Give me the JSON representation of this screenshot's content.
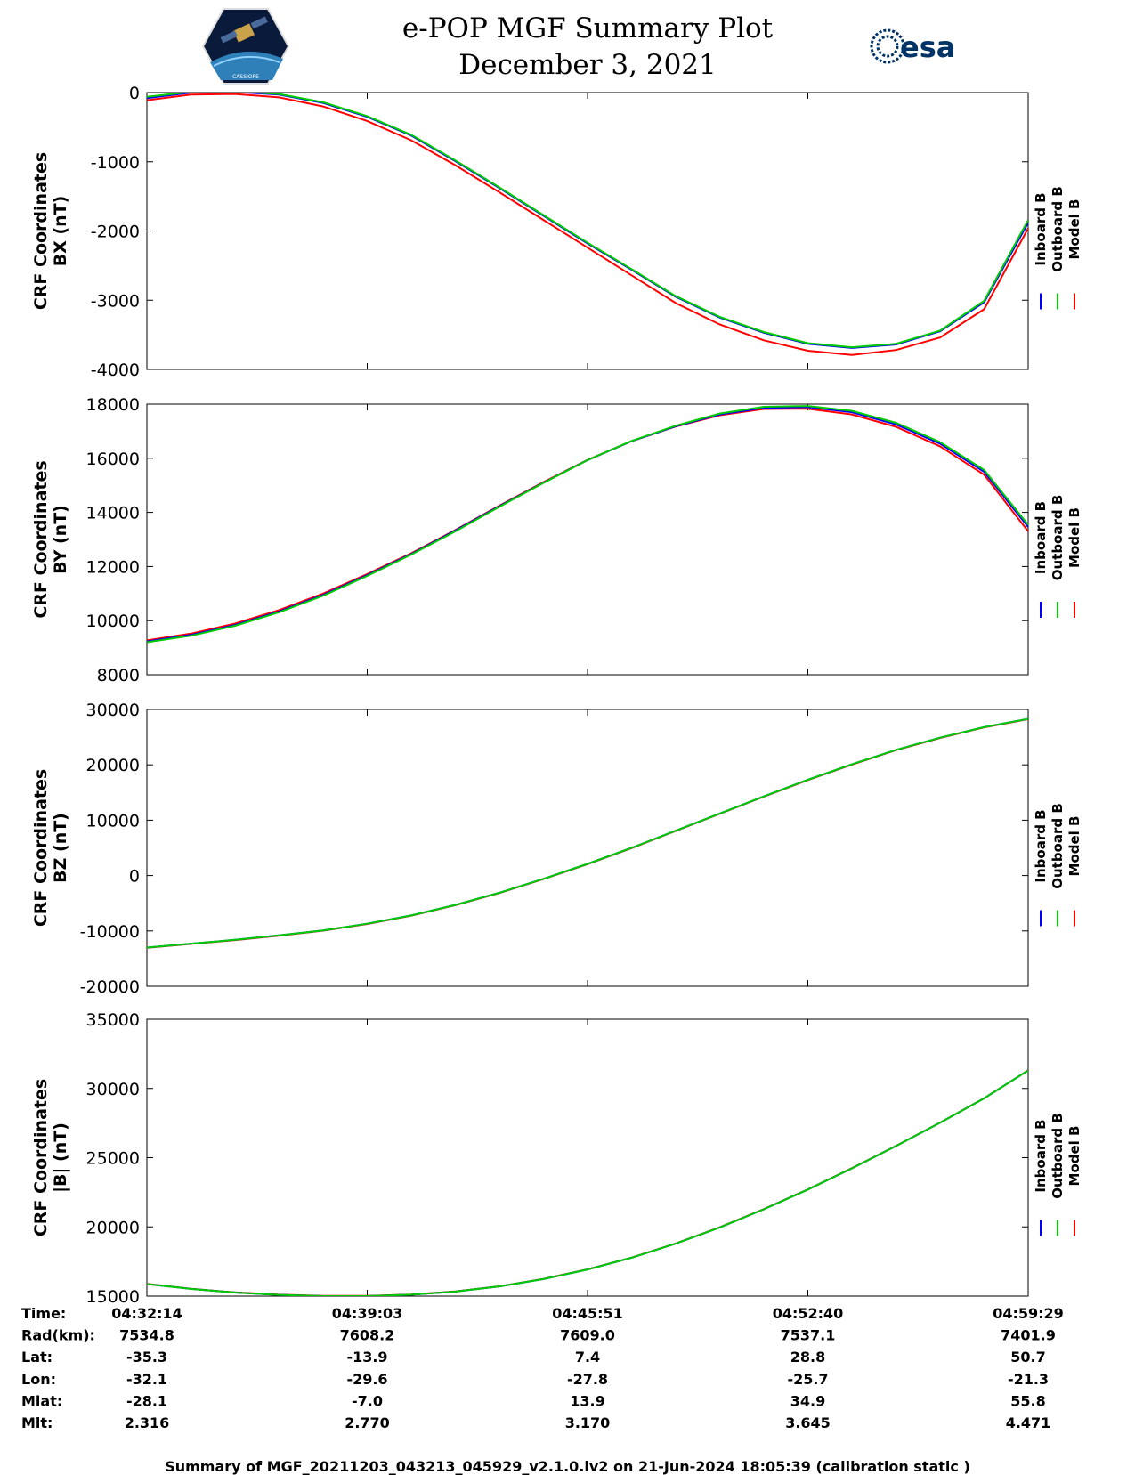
{
  "header": {
    "title": "e-POP MGF Summary Plot",
    "date": "December 3, 2021",
    "esa_logo_text": "esa",
    "epop_logo_text": "CASSIOPE"
  },
  "chart_data": [
    {
      "type": "line",
      "ylabel": [
        "CRF Coordinates",
        "BX (nT)"
      ],
      "ylim": [
        -4000,
        0
      ],
      "yticks": [
        0,
        -1000,
        -2000,
        -3000,
        -4000
      ],
      "tick_labels": [
        "0",
        "-1000",
        "-2000",
        "-3000",
        "-4000"
      ],
      "x": [
        0,
        0.05,
        0.1,
        0.15,
        0.2,
        0.25,
        0.3,
        0.35,
        0.4,
        0.45,
        0.5,
        0.55,
        0.6,
        0.65,
        0.7,
        0.75,
        0.8,
        0.85,
        0.9,
        0.95,
        1.0
      ],
      "series": [
        {
          "name": "Inboard B",
          "color": "#0000ff",
          "values": [
            -80,
            0,
            10,
            -30,
            -150,
            -350,
            -620,
            -990,
            -1380,
            -1780,
            -2180,
            -2560,
            -2950,
            -3250,
            -3470,
            -3630,
            -3690,
            -3640,
            -3450,
            -3030,
            -1880
          ]
        },
        {
          "name": "Outboard B",
          "color": "#00cc00",
          "values": [
            -60,
            10,
            20,
            -20,
            -140,
            -340,
            -610,
            -980,
            -1370,
            -1770,
            -2170,
            -2550,
            -2940,
            -3240,
            -3460,
            -3620,
            -3680,
            -3630,
            -3440,
            -3010,
            -1840
          ]
        },
        {
          "name": "Model B",
          "color": "#ff0000",
          "values": [
            -110,
            -30,
            -20,
            -70,
            -200,
            -410,
            -690,
            -1050,
            -1440,
            -1840,
            -2240,
            -2640,
            -3040,
            -3350,
            -3580,
            -3730,
            -3790,
            -3720,
            -3540,
            -3130,
            -1960
          ]
        }
      ]
    },
    {
      "type": "line",
      "ylabel": [
        "CRF Coordinates",
        "BY (nT)"
      ],
      "ylim": [
        8000,
        18000
      ],
      "yticks": [
        18000,
        16000,
        14000,
        12000,
        10000,
        8000
      ],
      "tick_labels": [
        "18000",
        "16000",
        "14000",
        "12000",
        "10000",
        "8000"
      ],
      "x": [
        0,
        0.05,
        0.1,
        0.15,
        0.2,
        0.25,
        0.3,
        0.35,
        0.4,
        0.45,
        0.5,
        0.55,
        0.6,
        0.65,
        0.7,
        0.75,
        0.8,
        0.85,
        0.9,
        0.95,
        1.0
      ],
      "series": [
        {
          "name": "Inboard B",
          "color": "#0000ff",
          "values": [
            9230,
            9470,
            9840,
            10340,
            10950,
            11680,
            12460,
            13330,
            14230,
            15100,
            15930,
            16630,
            17180,
            17620,
            17860,
            17890,
            17700,
            17250,
            16540,
            15500,
            13460
          ]
        },
        {
          "name": "Outboard B",
          "color": "#00cc00",
          "values": [
            9200,
            9440,
            9810,
            10310,
            10920,
            11650,
            12440,
            13300,
            14210,
            15090,
            15930,
            16640,
            17200,
            17650,
            17900,
            17930,
            17750,
            17310,
            16600,
            15570,
            13540
          ]
        },
        {
          "name": "Model B",
          "color": "#ff0000",
          "values": [
            9270,
            9520,
            9890,
            10390,
            11000,
            11720,
            12490,
            13350,
            14250,
            15120,
            15940,
            16630,
            17170,
            17590,
            17820,
            17830,
            17620,
            17160,
            16440,
            15390,
            13300
          ]
        }
      ]
    },
    {
      "type": "line",
      "ylabel": [
        "CRF Coordinates",
        "BZ (nT)"
      ],
      "ylim": [
        -20000,
        30000
      ],
      "yticks": [
        30000,
        20000,
        10000,
        0,
        -10000,
        -20000
      ],
      "tick_labels": [
        "30000",
        "20000",
        "10000",
        "0",
        "-10000",
        "-20000"
      ],
      "x": [
        0,
        0.05,
        0.1,
        0.15,
        0.2,
        0.25,
        0.3,
        0.35,
        0.4,
        0.45,
        0.5,
        0.55,
        0.6,
        0.65,
        0.7,
        0.75,
        0.8,
        0.85,
        0.9,
        0.95,
        1.0
      ],
      "series": [
        {
          "name": "Inboard B",
          "color": "#0000ff",
          "values": [
            -13000,
            -12300,
            -11600,
            -10800,
            -9900,
            -8700,
            -7200,
            -5300,
            -3100,
            -600,
            2100,
            5000,
            8100,
            11200,
            14300,
            17300,
            20100,
            22700,
            24900,
            26800,
            28300
          ]
        },
        {
          "name": "Outboard B",
          "color": "#00cc00",
          "values": [
            -13000,
            -12300,
            -11600,
            -10800,
            -9900,
            -8700,
            -7200,
            -5300,
            -3100,
            -600,
            2100,
            5000,
            8100,
            11200,
            14300,
            17300,
            20100,
            22700,
            24900,
            26800,
            28300
          ]
        },
        {
          "name": "Model B",
          "color": "#ff0000",
          "values": [
            -13050,
            -12350,
            -11650,
            -10850,
            -9950,
            -8750,
            -7250,
            -5350,
            -3150,
            -650,
            2050,
            4950,
            8050,
            11150,
            14250,
            17250,
            20050,
            22650,
            24850,
            26750,
            28250
          ]
        }
      ]
    },
    {
      "type": "line",
      "ylabel": [
        "CRF Coordinates",
        "|B| (nT)"
      ],
      "ylim": [
        15000,
        35000
      ],
      "yticks": [
        35000,
        30000,
        25000,
        20000,
        15000
      ],
      "tick_labels": [
        "35000",
        "30000",
        "25000",
        "20000",
        "15000"
      ],
      "x": [
        0,
        0.05,
        0.1,
        0.15,
        0.2,
        0.25,
        0.3,
        0.35,
        0.4,
        0.45,
        0.5,
        0.55,
        0.6,
        0.65,
        0.7,
        0.75,
        0.8,
        0.85,
        0.9,
        0.95,
        1.0
      ],
      "series": [
        {
          "name": "Inboard B",
          "color": "#0000ff",
          "values": [
            15870,
            15520,
            15260,
            15090,
            15000,
            15000,
            15100,
            15330,
            15700,
            16230,
            16920,
            17770,
            18790,
            19960,
            21270,
            22700,
            24230,
            25840,
            27520,
            29280,
            31300
          ]
        },
        {
          "name": "Outboard B",
          "color": "#00cc00",
          "values": [
            15870,
            15520,
            15260,
            15090,
            15000,
            15000,
            15100,
            15330,
            15700,
            16230,
            16920,
            17770,
            18790,
            19960,
            21270,
            22700,
            24230,
            25840,
            27520,
            29280,
            31300
          ]
        },
        {
          "name": "Model B",
          "color": "#ff0000",
          "values": [
            15880,
            15530,
            15270,
            15100,
            15010,
            15010,
            15110,
            15340,
            15710,
            16240,
            16930,
            17780,
            18800,
            19970,
            21280,
            22710,
            24240,
            25850,
            27530,
            29290,
            31310
          ]
        }
      ]
    }
  ],
  "legend": [
    "Inboard B",
    "Outboard B",
    "Model B"
  ],
  "legend_colors": [
    "#0000ff",
    "#00cc00",
    "#ff0000"
  ],
  "table": {
    "rows": [
      {
        "label": "Time:",
        "values": [
          "04:32:14",
          "04:39:03",
          "04:45:51",
          "04:52:40",
          "04:59:29"
        ]
      },
      {
        "label": "Rad(km):",
        "values": [
          "7534.8",
          "7608.2",
          "7609.0",
          "7537.1",
          "7401.9"
        ]
      },
      {
        "label": "Lat:",
        "values": [
          "-35.3",
          "-13.9",
          "7.4",
          "28.8",
          "50.7"
        ]
      },
      {
        "label": "Lon:",
        "values": [
          "-32.1",
          "-29.6",
          "-27.8",
          "-25.7",
          "-21.3"
        ]
      },
      {
        "label": "Mlat:",
        "values": [
          "-28.1",
          "-7.0",
          "13.9",
          "34.9",
          "55.8"
        ]
      },
      {
        "label": "Mlt:",
        "values": [
          "2.316",
          "2.770",
          "3.170",
          "3.645",
          "4.471"
        ]
      }
    ]
  },
  "footer": "Summary of MGF_20211203_043213_045929_v2.1.0.lv2 on 21-Jun-2024 18:05:39 (calibration static )"
}
